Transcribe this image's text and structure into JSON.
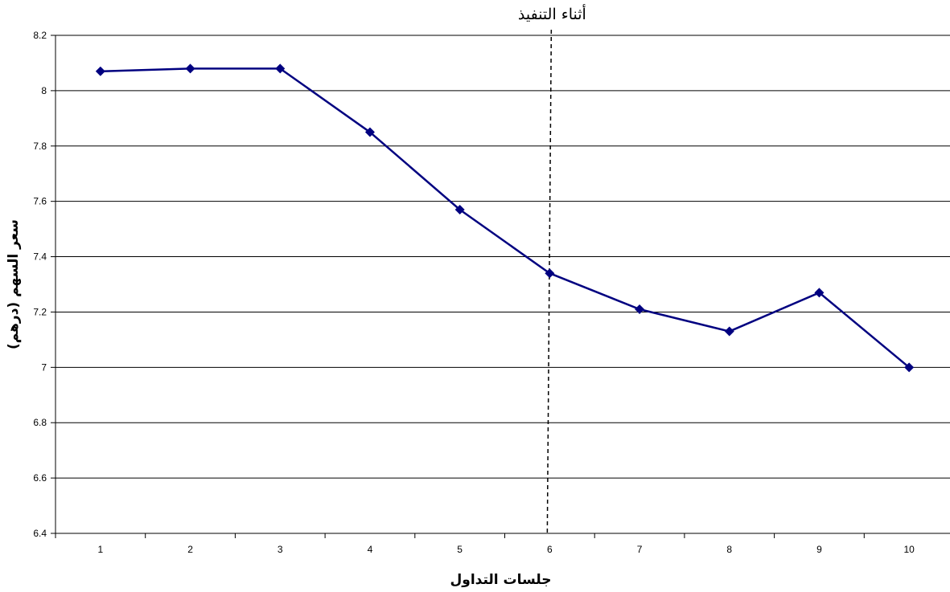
{
  "chart_data": {
    "type": "line",
    "title": "",
    "xlabel": "جلسات التداول",
    "ylabel": "سعر السهم (درهم)",
    "categories": [
      "1",
      "2",
      "3",
      "4",
      "5",
      "6",
      "7",
      "8",
      "9",
      "10"
    ],
    "series": [
      {
        "values": [
          8.07,
          8.08,
          8.08,
          7.85,
          7.57,
          7.34,
          7.21,
          7.13,
          7.27,
          7.0
        ],
        "color": "#000080",
        "marker": "diamond"
      }
    ],
    "ylim": [
      6.4,
      8.2
    ],
    "yticks": [
      "8.2",
      "8",
      "7.8",
      "7.6",
      "7.4",
      "7.2",
      "7",
      "6.8",
      "6.6",
      "6.4"
    ],
    "grid": "horizontal",
    "legend": "none",
    "annotation": {
      "label": "أثناء التنفيذ",
      "category": "6",
      "style": "dashed-vertical-line"
    }
  }
}
